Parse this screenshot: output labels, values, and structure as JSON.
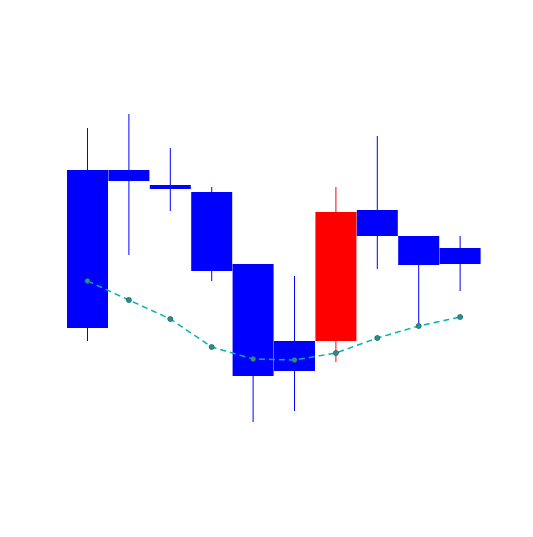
{
  "chart_data": {
    "type": "candlestick",
    "title": "",
    "xlabel": "",
    "ylabel": "",
    "grid": false,
    "legend": "none",
    "ylim": [
      0,
      533
    ],
    "candles": [
      {
        "open": 363,
        "close": 205,
        "high": 405,
        "low": 192
      },
      {
        "open": 363,
        "close": 352,
        "high": 419,
        "low": 278
      },
      {
        "open": 348,
        "close": 344,
        "high": 385,
        "low": 322
      },
      {
        "open": 341,
        "close": 262,
        "high": 346,
        "low": 252
      },
      {
        "open": 269,
        "close": 157,
        "high": 269,
        "low": 111
      },
      {
        "open": 192,
        "close": 162,
        "high": 257,
        "low": 122
      },
      {
        "open": 192,
        "close": 321,
        "high": 346,
        "low": 171
      },
      {
        "open": 323,
        "close": 297,
        "high": 397,
        "low": 264
      },
      {
        "open": 297,
        "close": 268,
        "high": 297,
        "low": 206
      },
      {
        "open": 285,
        "close": 269,
        "high": 297,
        "low": 242
      }
    ],
    "line_series": {
      "values": [
        252,
        233,
        214,
        186,
        174,
        173,
        180,
        195,
        207,
        216
      ]
    },
    "colors": {
      "up": "#ff0000",
      "down": "#0000ff",
      "line": "#00b3b3",
      "marker_fill": "#2e8b8b"
    }
  }
}
